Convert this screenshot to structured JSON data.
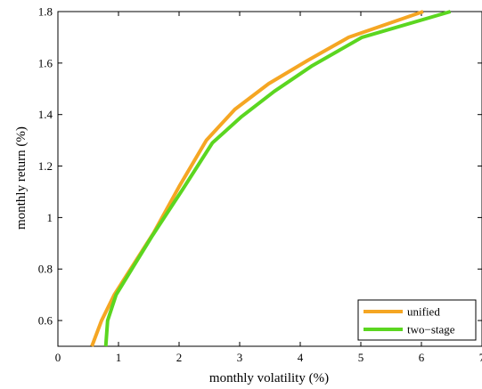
{
  "chart_data": {
    "type": "line",
    "xlabel": "monthly volatility (%)",
    "ylabel": "monthly return (%)",
    "xlim": [
      0,
      7
    ],
    "ylim": [
      0.5,
      1.8
    ],
    "x_ticks": [
      "0",
      "1",
      "2",
      "3",
      "4",
      "5",
      "6",
      "7"
    ],
    "y_ticks": [
      "0.6",
      "0.8",
      "1",
      "1.2",
      "1.4",
      "1.6",
      "1.8"
    ],
    "legend_position": "bottom-right",
    "series": [
      {
        "name": "unified",
        "color": "#F5A623",
        "x": [
          0.56,
          0.72,
          0.93,
          1.2,
          1.58,
          2.0,
          2.45,
          2.92,
          3.48,
          4.12,
          4.8,
          6.03
        ],
        "y": [
          0.5,
          0.6,
          0.7,
          0.8,
          0.94,
          1.12,
          1.3,
          1.42,
          1.52,
          1.61,
          1.7,
          1.8
        ]
      },
      {
        "name": "two-stage",
        "color": "#5BD620",
        "x": [
          0.79,
          0.82,
          0.96,
          1.22,
          1.56,
          2.06,
          2.55,
          3.02,
          3.57,
          4.2,
          5.02,
          6.48
        ],
        "y": [
          0.5,
          0.6,
          0.7,
          0.8,
          0.93,
          1.11,
          1.29,
          1.39,
          1.49,
          1.59,
          1.7,
          1.8
        ]
      }
    ]
  }
}
